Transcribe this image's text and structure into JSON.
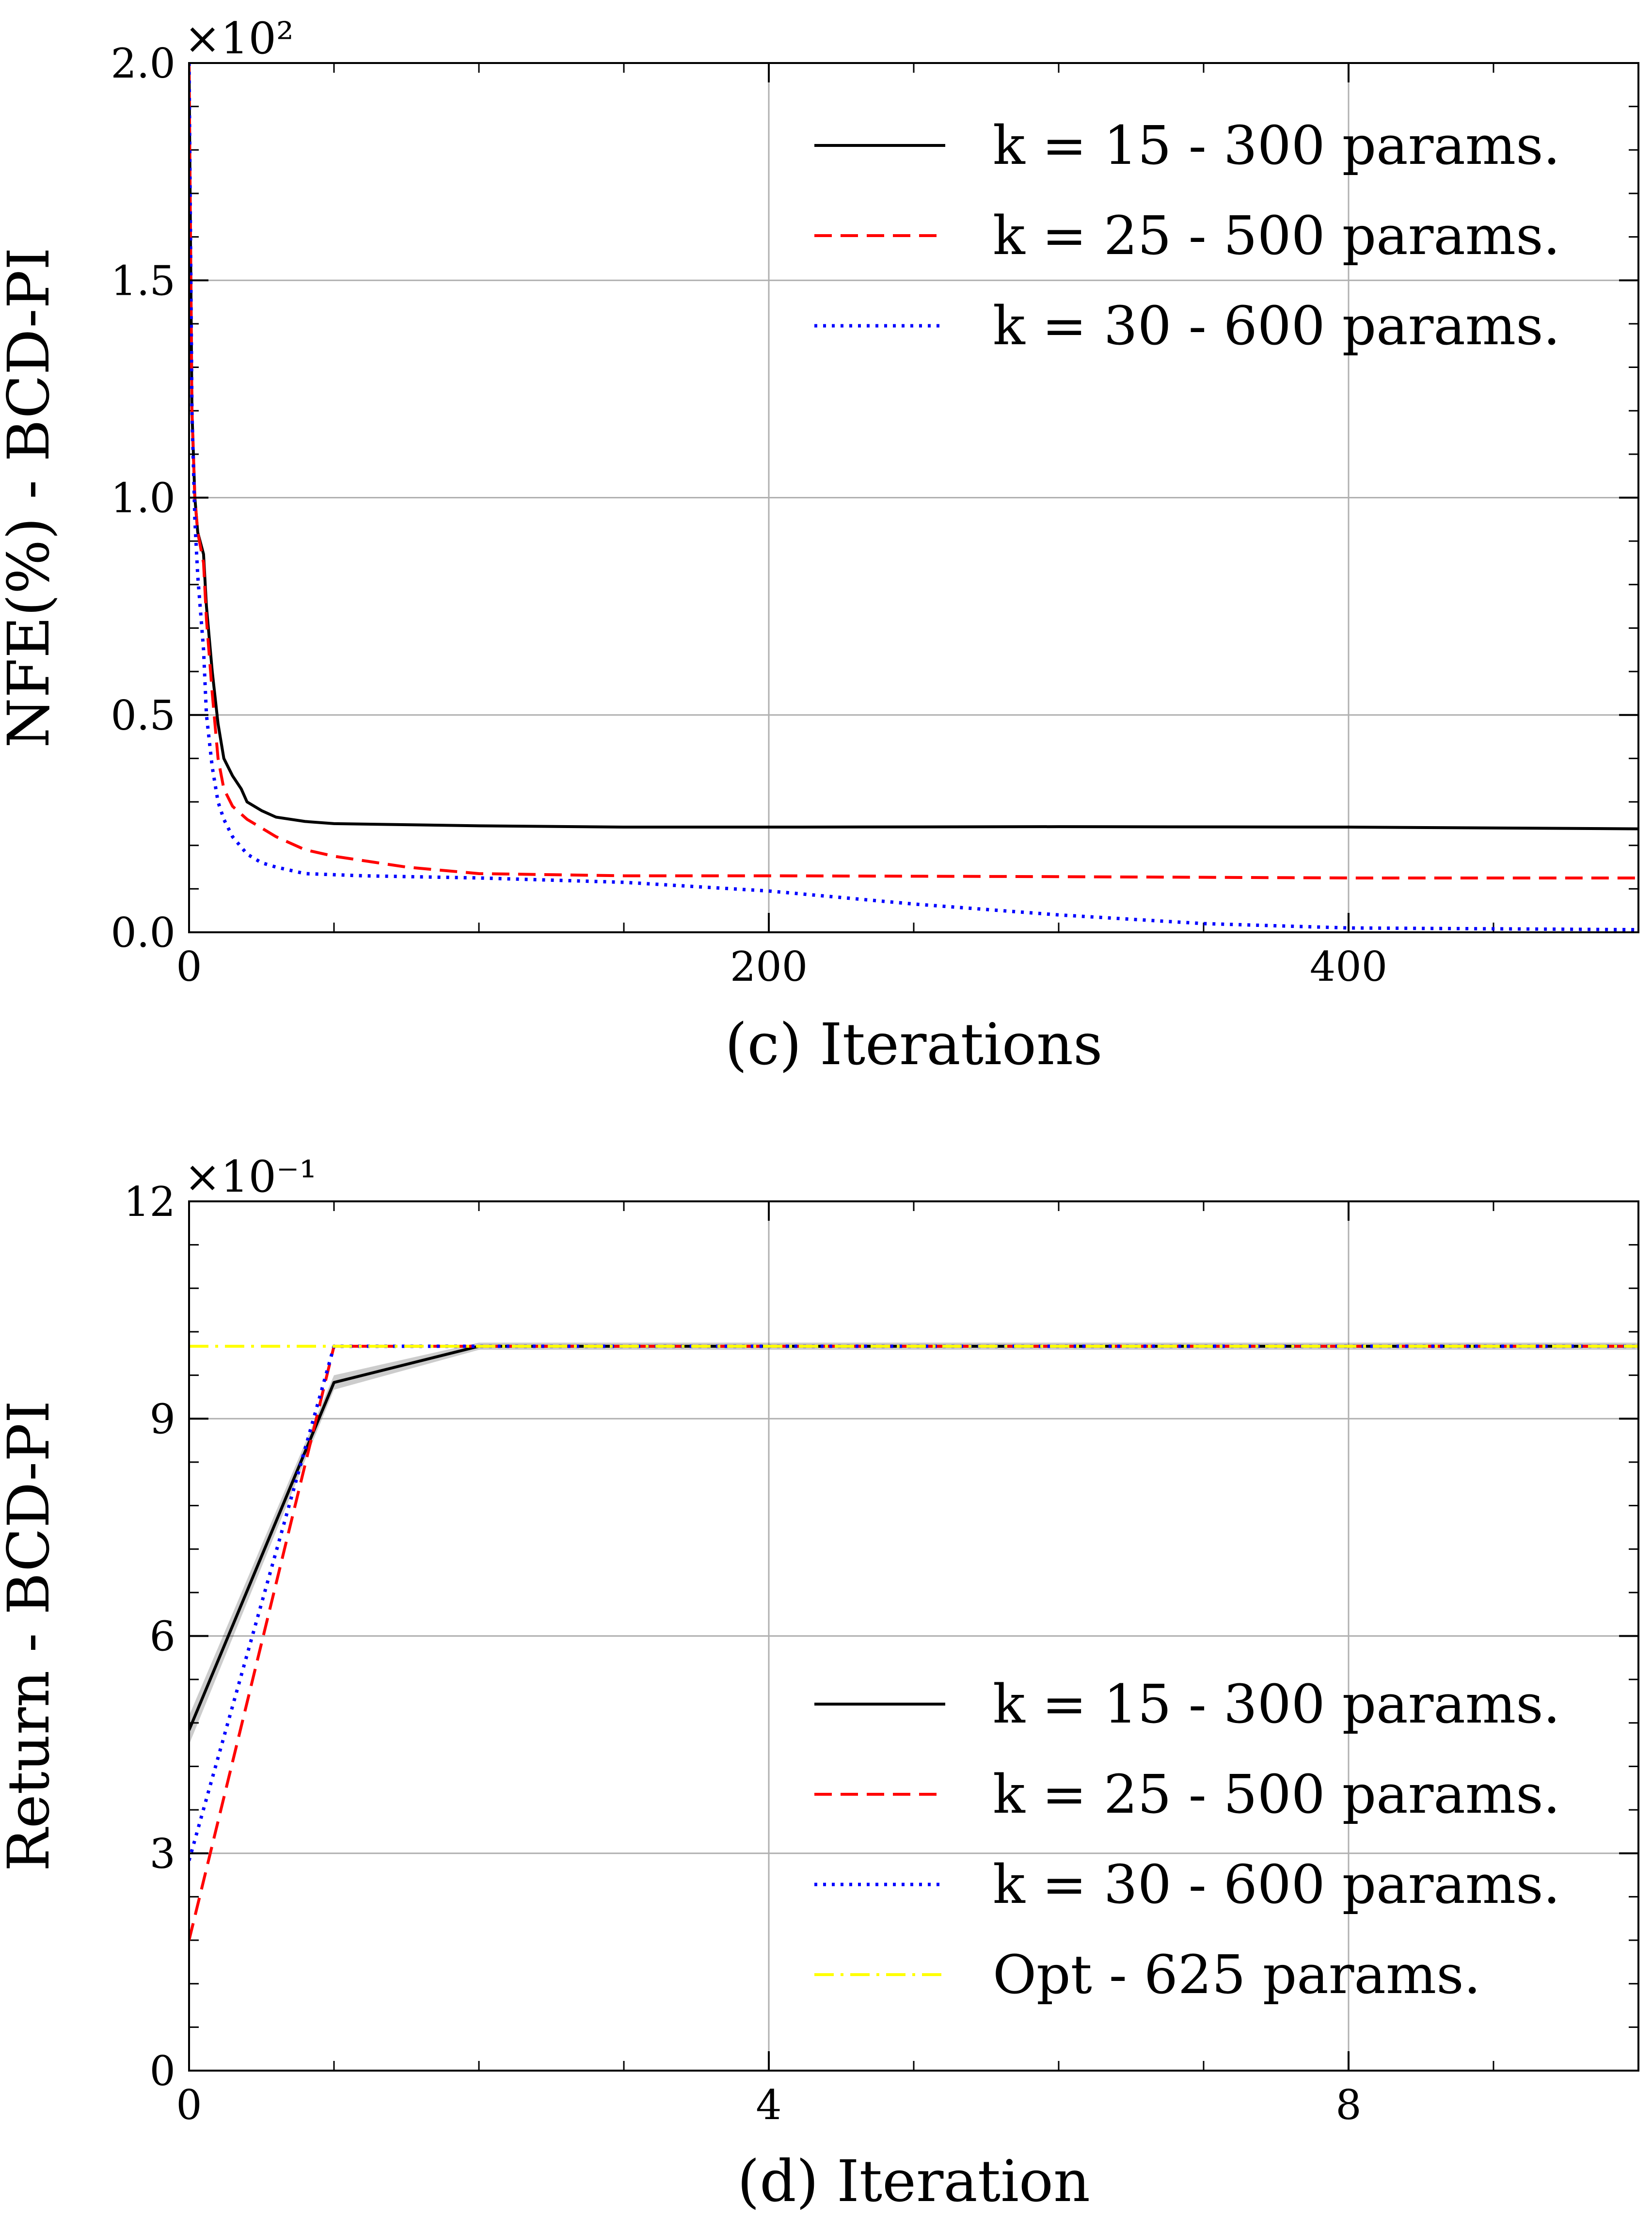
{
  "chart_data": [
    {
      "type": "line",
      "xlabel": "(c) Iterations",
      "ylabel": "NFE(%) - BCD-PI",
      "y_scale_label": "×10²",
      "xlim": [
        0,
        500
      ],
      "ylim": [
        0,
        200
      ],
      "x_ticks": [
        0,
        200,
        400
      ],
      "x_tick_labels": [
        "0",
        "200",
        "400"
      ],
      "y_ticks": [
        0,
        50,
        100,
        150,
        200
      ],
      "y_tick_labels": [
        "0.0",
        "0.5",
        "1.0",
        "1.5",
        "2.0"
      ],
      "grid": true,
      "legend_position": "top-right",
      "series": [
        {
          "name": "k = 15 - 300 params.",
          "color": "#000000",
          "dash": "solid",
          "x": [
            0,
            1,
            2,
            3,
            5,
            6,
            8,
            10,
            12,
            15,
            18,
            20,
            25,
            30,
            40,
            50,
            100,
            150,
            200,
            300,
            400,
            500
          ],
          "y": [
            200,
            120,
            100,
            92,
            87,
            75,
            60,
            48,
            40,
            36,
            33,
            30,
            28,
            26.5,
            25.5,
            25,
            24.5,
            24.2,
            24.2,
            24.3,
            24.2,
            23.8
          ]
        },
        {
          "name": "k = 25 - 500 params.",
          "color": "#ff0000",
          "dash": "dashed",
          "x": [
            0,
            1,
            2,
            3,
            5,
            6,
            8,
            10,
            12,
            15,
            20,
            25,
            30,
            40,
            50,
            75,
            100,
            150,
            200,
            300,
            400,
            500
          ],
          "y": [
            200,
            120,
            100,
            92,
            85,
            72,
            55,
            40,
            33,
            29,
            26,
            24,
            22,
            19,
            17.5,
            15,
            13.5,
            13,
            13,
            12.8,
            12.5,
            12.5
          ]
        },
        {
          "name": "k = 30 - 600 params.",
          "color": "#0000ff",
          "dash": "dotted",
          "x": [
            0,
            1,
            2,
            3,
            5,
            6,
            8,
            10,
            12,
            15,
            20,
            25,
            30,
            40,
            60,
            100,
            150,
            200,
            250,
            300,
            350,
            400,
            450,
            500
          ],
          "y": [
            200,
            120,
            95,
            82,
            65,
            50,
            38,
            30,
            26,
            22,
            18,
            16,
            15,
            13.5,
            13,
            12.5,
            11.5,
            9.5,
            6.5,
            4,
            2,
            1,
            0.8,
            0.6
          ]
        }
      ]
    },
    {
      "type": "line",
      "xlabel": "(d) Iteration",
      "ylabel": "Return - BCD-PI",
      "y_scale_label": "×10⁻¹",
      "xlim": [
        0,
        10
      ],
      "ylim": [
        0,
        1.2
      ],
      "x_ticks": [
        0,
        4,
        8
      ],
      "x_tick_labels": [
        "0",
        "4",
        "8"
      ],
      "y_ticks": [
        0,
        0.3,
        0.6,
        0.9,
        1.2
      ],
      "y_tick_labels": [
        "0",
        "3",
        "6",
        "9",
        "12"
      ],
      "grid": true,
      "legend_position": "bottom-right",
      "series": [
        {
          "name": "k = 15 - 300 params.",
          "color": "#000000",
          "dash": "solid",
          "x": [
            0,
            1,
            2,
            3,
            4,
            5,
            6,
            7,
            8,
            9,
            10
          ],
          "y": [
            0.47,
            0.95,
            1.0,
            1.0,
            1.0,
            1.0,
            1.0,
            1.0,
            1.0,
            1.0,
            1.0
          ],
          "band": [
            0.02,
            0.01,
            0.005,
            0.005,
            0.005,
            0.005,
            0.005,
            0.005,
            0.005,
            0.005,
            0.005
          ]
        },
        {
          "name": "k = 25 - 500 params.",
          "color": "#ff0000",
          "dash": "dashed",
          "x": [
            0,
            1,
            2,
            3,
            4,
            5,
            6,
            7,
            8,
            9,
            10
          ],
          "y": [
            0.18,
            1.0,
            1.0,
            1.0,
            1.0,
            1.0,
            1.0,
            1.0,
            1.0,
            1.0,
            1.0
          ]
        },
        {
          "name": "k = 30 - 600 params.",
          "color": "#0000ff",
          "dash": "dotted",
          "x": [
            0,
            1,
            2,
            3,
            4,
            5,
            6,
            7,
            8,
            9,
            10
          ],
          "y": [
            0.29,
            1.0,
            1.0,
            1.0,
            1.0,
            1.0,
            1.0,
            1.0,
            1.0,
            1.0,
            1.0
          ]
        },
        {
          "name": "Opt - 625 params.",
          "color": "#ffff00",
          "dash": "dashdot",
          "x": [
            0,
            10
          ],
          "y": [
            1.0,
            1.0
          ]
        }
      ]
    }
  ]
}
